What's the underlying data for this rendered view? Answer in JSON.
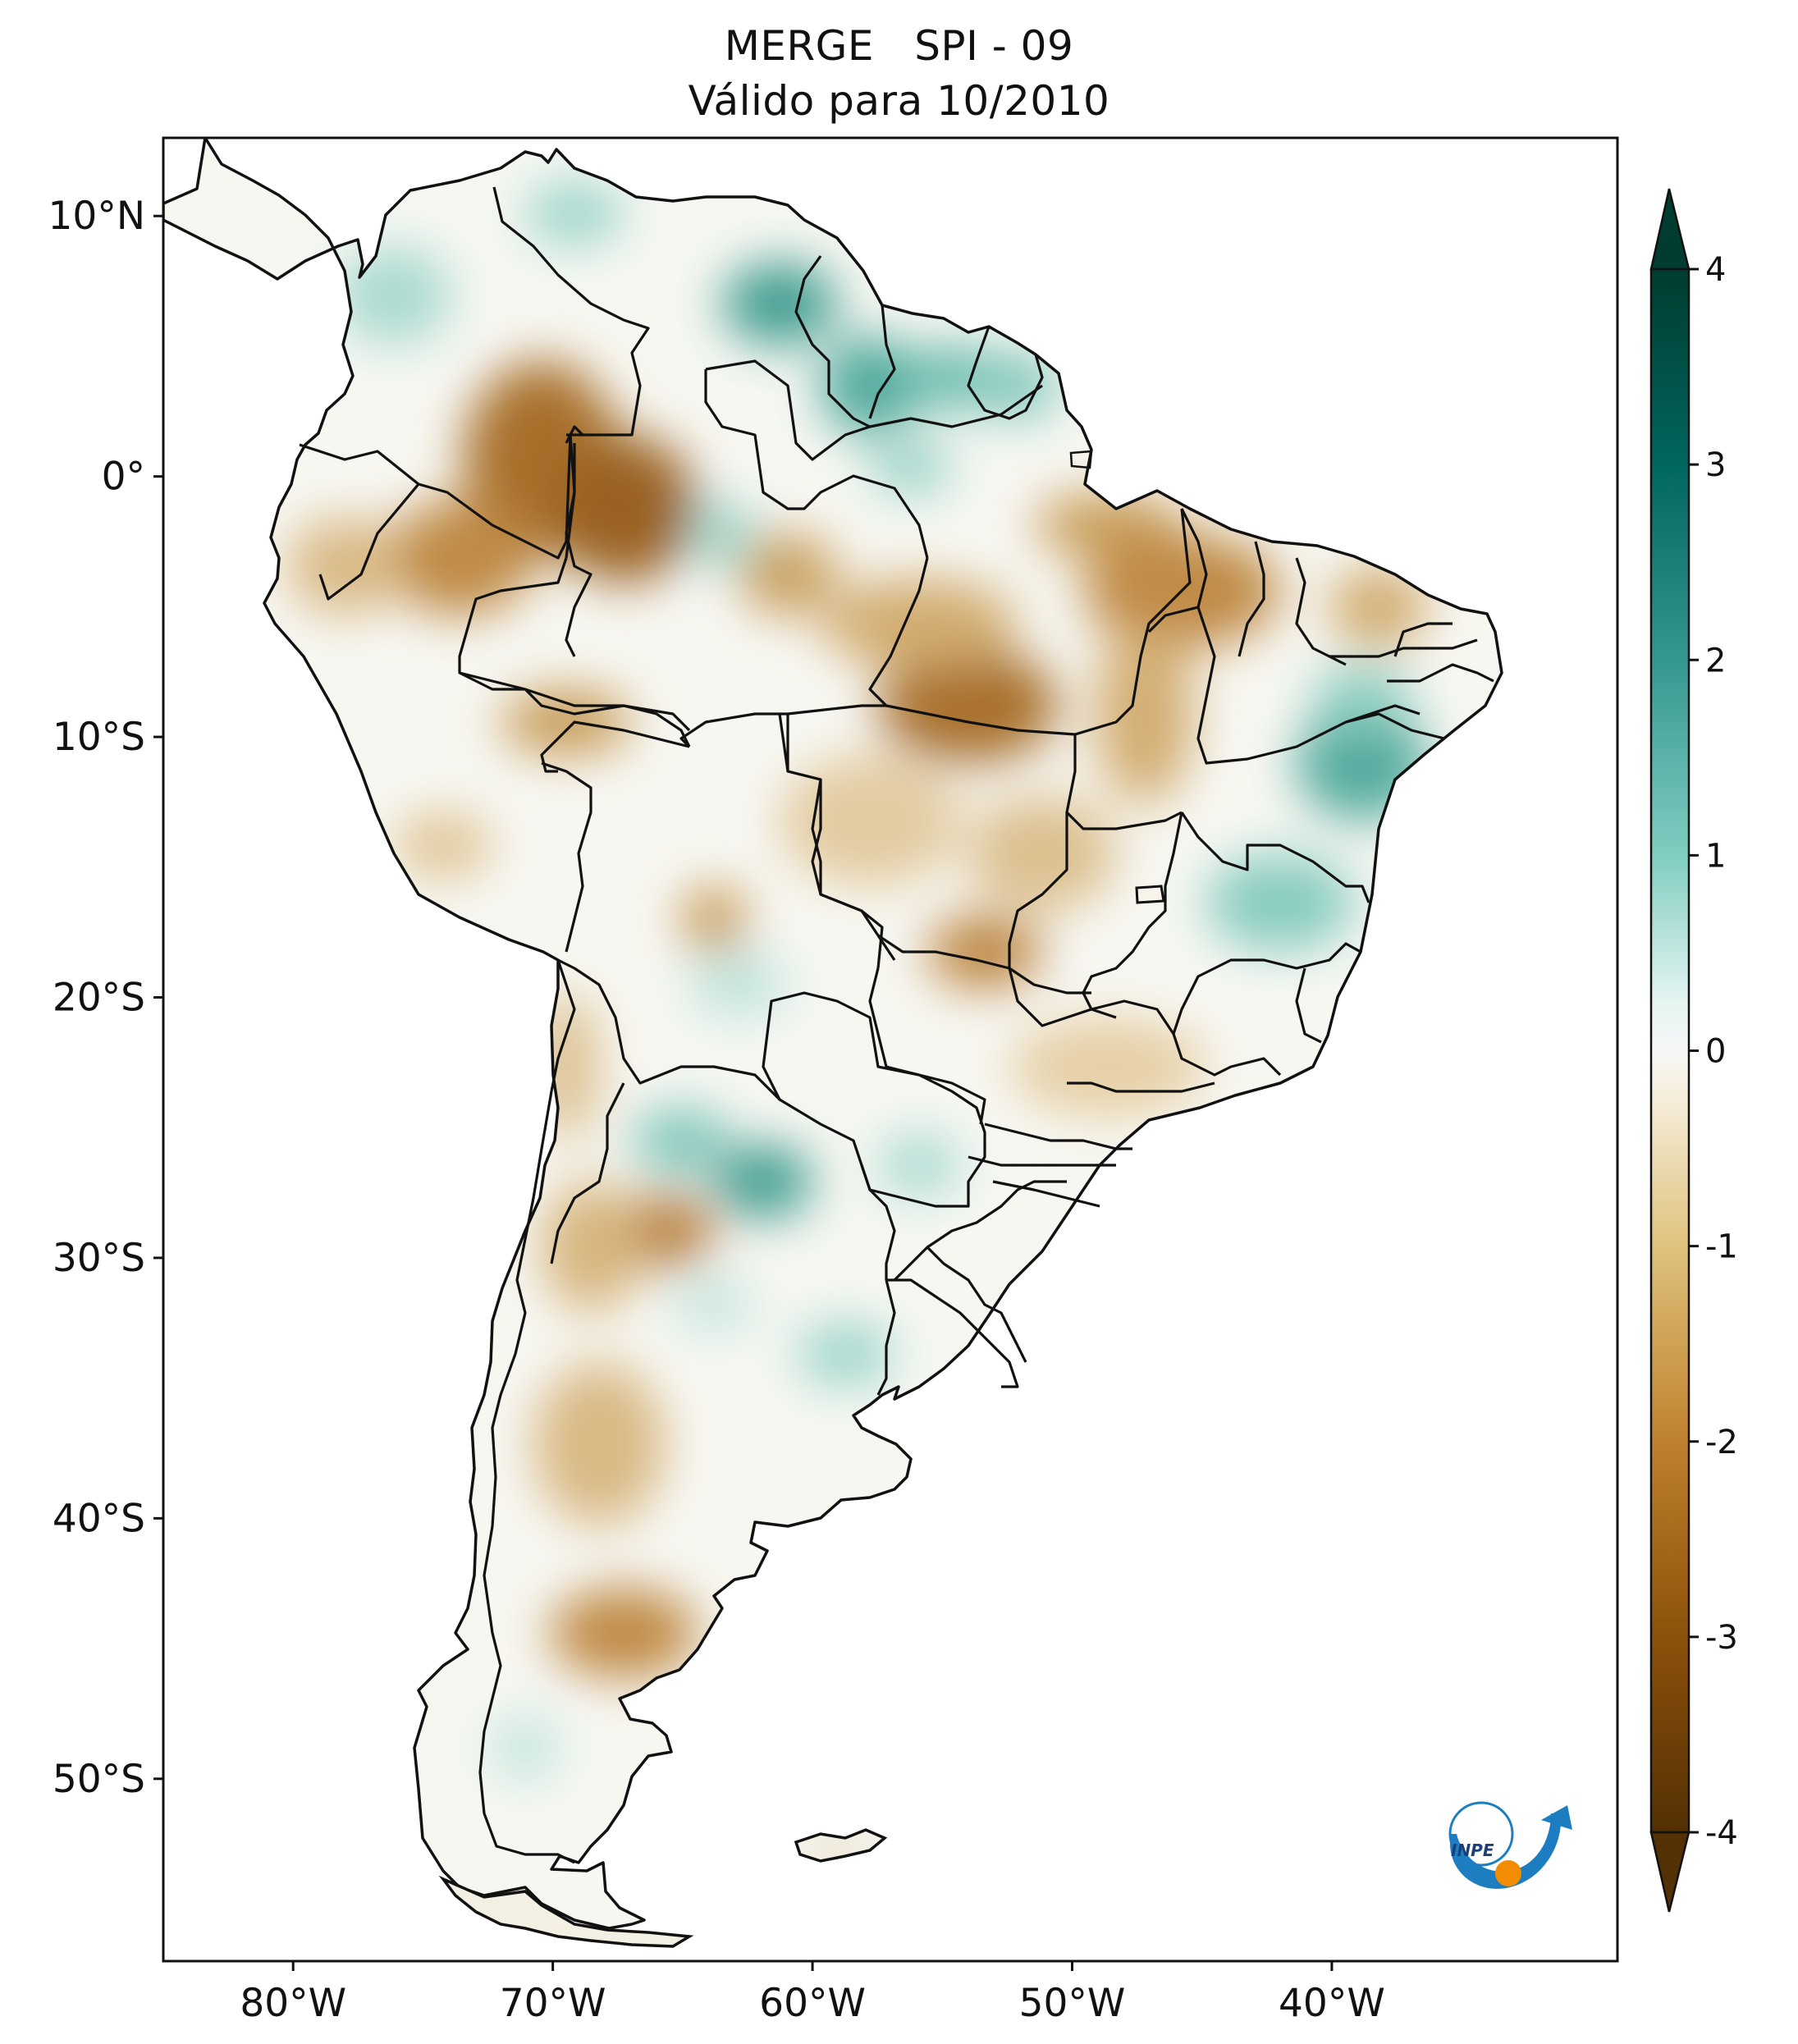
{
  "title": {
    "line1": "MERGE   SPI - 09",
    "line2": "Válido para 10/2010"
  },
  "map": {
    "lat_ticks": [
      "10°N",
      "0°",
      "10°S",
      "20°S",
      "30°S",
      "40°S",
      "50°S"
    ],
    "lon_ticks": [
      "80°W",
      "70°W",
      "60°W",
      "50°W",
      "40°W"
    ],
    "extent": {
      "lon": [
        -85,
        -29
      ],
      "lat": [
        -57,
        13
      ]
    }
  },
  "colorbar": {
    "colormap": "BrBG",
    "range": [
      -4,
      4
    ],
    "ticks": [
      "4",
      "3",
      "2",
      "1",
      "0",
      "-1",
      "-2",
      "-3",
      "-4"
    ],
    "extend": "both"
  },
  "logo": {
    "text": "INPE",
    "colors": {
      "arc": "#1c7dc0",
      "dot": "#f28c00"
    }
  },
  "colors": {
    "dry_strong": "#8a5514",
    "dry_mid": "#c69a55",
    "dry_light": "#ead5ab",
    "neutral": "#f7f7f2",
    "wet_light": "#bfe4dc",
    "wet_mid": "#6bbcaf",
    "wet_strong": "#1d7e72",
    "border": "#111111"
  }
}
